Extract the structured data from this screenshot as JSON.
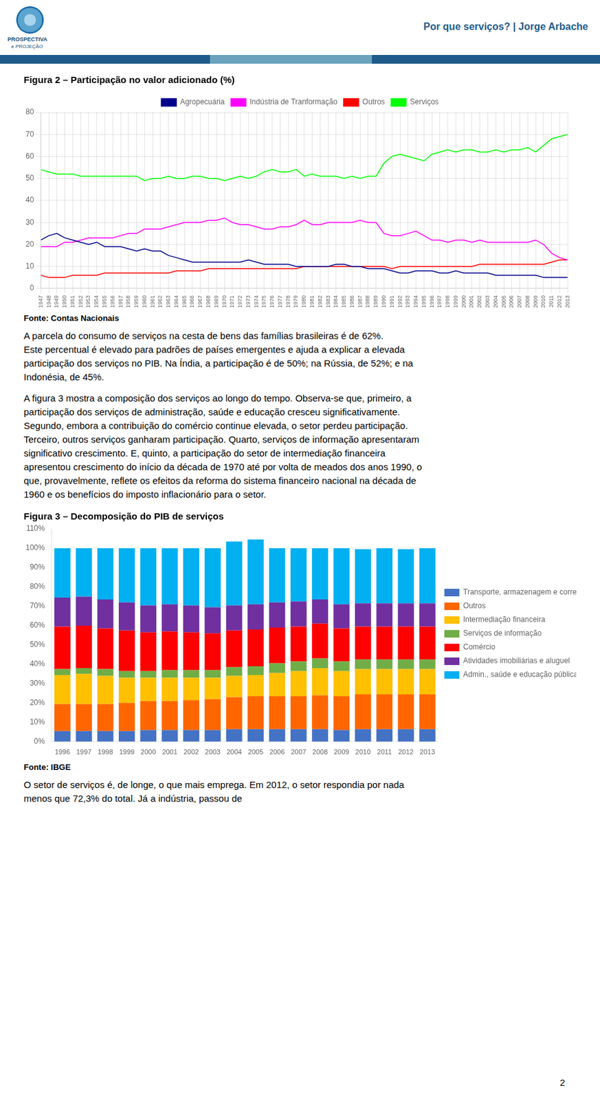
{
  "header": "Por que serviços? | Jorge Arbache",
  "logo": [
    "PROSPECTIVA",
    "e PROJEÇÃO"
  ],
  "page_number": "2",
  "sources": [
    "Fonte: Contas Nacionais",
    "Fonte: IBGE"
  ],
  "paragraphs": [
    [
      "A parcela do consumo de serviços na cesta de bens das famílias brasileiras é de 62%.",
      "Este percentual é elevado para padrões de países emergentes e ajuda a explicar a elevada",
      "participação dos serviços no PIB. Na Índia, a participação é de 50%; na Rússia, de 52%; e na",
      "Indonésia, de 45%."
    ],
    [
      "A figura 3 mostra a composição dos serviços ao longo do tempo. Observa-se que, primeiro, a",
      "participação dos serviços de administração, saúde e educação cresceu significativamente.",
      "Segundo, embora a contribuição do comércio continue elevada, o setor perdeu participação.",
      "Terceiro, outros serviços ganharam participação. Quarto, serviços de informação apresentaram",
      "significativo crescimento. E, quinto, a participação do setor de intermediação financeira",
      "apresentou crescimento do início da década de 1970 até por volta de meados dos anos 1990, o",
      "que, provavelmente, reflete os efeitos da reforma do sistema financeiro nacional na década de",
      "1960 e os benefícios do imposto inflacionário para o setor."
    ],
    [
      "O setor de serviços é, de longe, o que mais emprega. Em 2012, o setor respondia por nada",
      "menos que 72,3% do total. Já a indústria, passou de"
    ]
  ],
  "chart_data": [
    {
      "type": "line",
      "title": "Figura 2 – Participação no valor adicionado (%)",
      "x": [
        1947,
        1948,
        1949,
        1950,
        1951,
        1952,
        1953,
        1954,
        1955,
        1956,
        1957,
        1958,
        1959,
        1960,
        1961,
        1962,
        1963,
        1964,
        1965,
        1966,
        1967,
        1968,
        1969,
        1970,
        1971,
        1972,
        1973,
        1974,
        1975,
        1976,
        1977,
        1978,
        1979,
        1980,
        1981,
        1982,
        1983,
        1984,
        1985,
        1986,
        1987,
        1988,
        1989,
        1990,
        1991,
        1992,
        1993,
        1994,
        1995,
        1996,
        1997,
        1998,
        1999,
        2000,
        2001,
        2002,
        2003,
        2004,
        2005,
        2006,
        2007,
        2008,
        2009,
        2010,
        2011,
        2012,
        2013
      ],
      "series": [
        {
          "name": "Agropecuária",
          "color": "#00008B",
          "values": [
            22,
            24,
            25,
            23,
            22,
            21,
            20,
            21,
            19,
            19,
            19,
            18,
            17,
            18,
            17,
            17,
            15,
            14,
            13,
            12,
            12,
            12,
            12,
            12,
            12,
            12,
            13,
            12,
            11,
            11,
            11,
            11,
            10,
            10,
            10,
            10,
            10,
            11,
            11,
            10,
            10,
            9,
            9,
            9,
            8,
            7,
            7,
            8,
            8,
            8,
            7,
            7,
            8,
            7,
            7,
            7,
            7,
            6,
            6,
            6,
            6,
            6,
            6,
            5,
            5,
            5,
            5
          ]
        },
        {
          "name": "Indústria de Tranformação",
          "color": "#FF00FF",
          "values": [
            19,
            19,
            19,
            21,
            21,
            22,
            23,
            23,
            23,
            23,
            24,
            25,
            25,
            27,
            27,
            27,
            28,
            29,
            30,
            30,
            30,
            31,
            31,
            32,
            30,
            29,
            29,
            28,
            27,
            27,
            28,
            28,
            29,
            31,
            29,
            29,
            30,
            30,
            30,
            30,
            31,
            30,
            30,
            25,
            24,
            24,
            25,
            26,
            24,
            22,
            22,
            21,
            22,
            22,
            21,
            22,
            21,
            21,
            21,
            21,
            21,
            21,
            22,
            20,
            16,
            14,
            13
          ]
        },
        {
          "name": "Outros",
          "color": "#FF0000",
          "values": [
            6,
            5,
            5,
            5,
            6,
            6,
            6,
            6,
            7,
            7,
            7,
            7,
            7,
            7,
            7,
            7,
            7,
            8,
            8,
            8,
            8,
            9,
            9,
            9,
            9,
            9,
            9,
            9,
            9,
            9,
            9,
            9,
            9,
            10,
            10,
            10,
            10,
            10,
            10,
            10,
            10,
            10,
            10,
            10,
            9,
            10,
            10,
            10,
            10,
            10,
            10,
            10,
            10,
            10,
            10,
            11,
            11,
            11,
            11,
            11,
            11,
            11,
            11,
            11,
            12,
            13,
            13
          ]
        },
        {
          "name": "Serviços",
          "color": "#00FF00",
          "values": [
            54,
            53,
            52,
            52,
            52,
            51,
            51,
            51,
            51,
            51,
            51,
            51,
            51,
            49,
            50,
            50,
            51,
            50,
            50,
            51,
            51,
            50,
            50,
            49,
            50,
            51,
            50,
            51,
            53,
            54,
            53,
            53,
            54,
            51,
            52,
            51,
            51,
            51,
            50,
            51,
            50,
            51,
            51,
            57,
            60,
            61,
            60,
            59,
            58,
            61,
            62,
            63,
            62,
            63,
            63,
            62,
            62,
            63,
            62,
            63,
            63,
            64,
            62,
            65,
            68,
            69,
            70
          ]
        }
      ],
      "xlim": [
        1947,
        2013
      ],
      "xticks": [
        1947,
        1948,
        1949,
        1950,
        1951,
        1952,
        1953,
        1954,
        1955,
        1956,
        1957,
        1958,
        1959,
        1960,
        1961,
        1962,
        1963,
        1964,
        1965,
        1966,
        1967,
        1968,
        1969,
        1970,
        1971,
        1972,
        1973,
        1974,
        1975,
        1976,
        1977,
        1978,
        1979,
        1980,
        1981,
        1982,
        1983,
        1984,
        1985,
        1986,
        1987,
        1988,
        1989,
        1990,
        1991,
        1992,
        1993,
        1994,
        1995,
        1996,
        1997,
        1998,
        1999,
        2000,
        2001,
        2002,
        2003,
        2004,
        2005,
        2006,
        2007,
        2008,
        2009,
        2010,
        2011,
        2012,
        2013
      ],
      "ylim": [
        0,
        80
      ],
      "yticks": [
        0,
        10,
        20,
        30,
        40,
        50,
        60,
        70,
        80
      ],
      "grid": true,
      "legend": "top"
    },
    {
      "type": "bar",
      "title": "Figura 3 – Decomposição do PIB de serviços",
      "stacked": true,
      "categories": [
        "1996",
        "1997",
        "1998",
        "1999",
        "2000",
        "2001",
        "2002",
        "2003",
        "2004",
        "2005",
        "2006",
        "2007",
        "2008",
        "2009",
        "2010",
        "2011",
        "2012",
        "2013"
      ],
      "series": [
        {
          "name": "Transporte, armazenagem e correio",
          "color": "#4472C4",
          "values": [
            5.5,
            5.5,
            5.5,
            5.5,
            6.0,
            6.0,
            6.0,
            6.0,
            6.5,
            6.5,
            6.5,
            6.5,
            6.5,
            6.0,
            6.5,
            6.5,
            6.5,
            6.5
          ]
        },
        {
          "name": "Outros",
          "color": "#FF6600",
          "values": [
            14,
            14,
            14,
            14.5,
            15,
            15,
            15.5,
            16,
            16.5,
            17,
            17,
            17,
            17.5,
            17.5,
            18,
            18,
            18,
            18
          ]
        },
        {
          "name": "Intermediação financeira",
          "color": "#FFC000",
          "values": [
            15,
            15.5,
            14.5,
            13,
            12,
            12,
            11.5,
            11,
            11,
            11,
            12,
            13,
            14,
            13,
            13,
            13,
            13,
            13
          ]
        },
        {
          "name": "Serviços de informação",
          "color": "#70AD47",
          "values": [
            3,
            3,
            3.5,
            3.5,
            3.5,
            4,
            4,
            4,
            4.5,
            4.5,
            5,
            5,
            5,
            5,
            5,
            5,
            5,
            5
          ]
        },
        {
          "name": "Comércio",
          "color": "#FF0000",
          "values": [
            22,
            22,
            21,
            21,
            20,
            20,
            19.5,
            19,
            19,
            19,
            18.5,
            18,
            18,
            17,
            17,
            17,
            17,
            17
          ]
        },
        {
          "name": "Atividades imobiliárias e aluguel",
          "color": "#7030A0",
          "values": [
            15,
            15,
            15,
            14.5,
            14,
            14,
            14,
            13.5,
            13,
            13,
            13,
            13,
            12.5,
            12.5,
            12,
            12,
            12,
            12
          ]
        },
        {
          "name": "Admin., saúde e educação públicas",
          "color": "#00B0F0",
          "values": [
            25.5,
            25,
            26.5,
            28,
            29.5,
            29,
            29.5,
            30.5,
            33,
            33.5,
            28,
            27.5,
            26.5,
            29,
            28,
            28.5,
            28,
            28.5
          ]
        }
      ],
      "ylim": [
        0,
        110
      ],
      "yticks": [
        {
          "value": 0,
          "label": "0%"
        },
        {
          "value": 10,
          "label": "10%"
        },
        {
          "value": 20,
          "label": "20%"
        },
        {
          "value": 30,
          "label": "30%"
        },
        {
          "value": 40,
          "label": "40%"
        },
        {
          "value": 50,
          "label": "50%"
        },
        {
          "value": 60,
          "label": "60%"
        },
        {
          "value": 70,
          "label": "70%"
        },
        {
          "value": 80,
          "label": "80%"
        },
        {
          "value": 90,
          "label": "90%"
        },
        {
          "value": 100,
          "label": "100%"
        },
        {
          "value": 110,
          "label": "110%"
        }
      ],
      "grid": false,
      "legend": "right"
    }
  ]
}
